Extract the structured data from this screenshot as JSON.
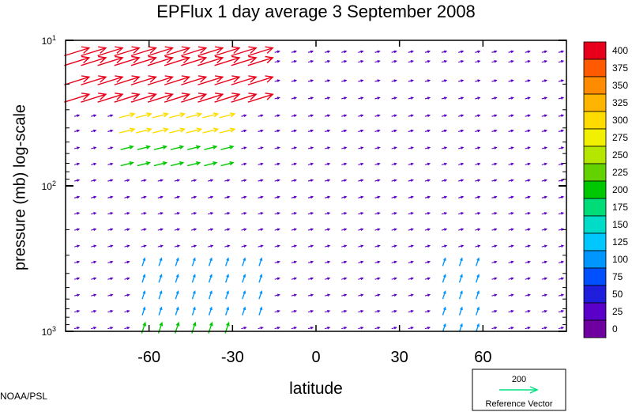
{
  "chart_data": {
    "type": "quiver",
    "title": "EPFlux  1 day average  3 September 2008",
    "xlabel": "latitude",
    "ylabel": "pressure (mb)  log-scale",
    "xlim": [
      -90,
      90
    ],
    "ylim": [
      1000,
      10
    ],
    "y_scale": "log",
    "x_ticks": [
      -60,
      -30,
      0,
      30,
      60
    ],
    "x_tick_labels": [
      "-60",
      "-30",
      "0",
      "30",
      "60"
    ],
    "y_ticks": [
      {
        "value": 10,
        "base": "10",
        "exp": "1"
      },
      {
        "value": 100,
        "base": "10",
        "exp": "2"
      },
      {
        "value": 1000,
        "base": "10",
        "exp": "3"
      }
    ],
    "colorbar": {
      "levels": [
        400,
        375,
        350,
        325,
        300,
        275,
        250,
        225,
        200,
        175,
        150,
        125,
        100,
        75,
        50,
        25,
        0
      ],
      "level_labels": [
        "400",
        "375",
        "350",
        "325",
        "300",
        "275",
        "250",
        "225",
        "200",
        "175",
        "150",
        "125",
        "100",
        "75",
        "50",
        "25",
        "0"
      ],
      "colors": [
        "#e8001a",
        "#ff5a00",
        "#ff8c00",
        "#ffb400",
        "#ffdc00",
        "#f0f000",
        "#b4e600",
        "#64d200",
        "#00c800",
        "#00dc78",
        "#00dcc8",
        "#00c8ff",
        "#0096ff",
        "#0050ff",
        "#1e1edc",
        "#5a00c8",
        "#6e00a0"
      ]
    },
    "reference_vector": {
      "value": "200",
      "label": "Reference Vector",
      "color": "#00e080"
    },
    "vector_field": {
      "lat_start": -86,
      "lat_step": 6,
      "lat_count": 30,
      "levels_mb": [
        12,
        14,
        19,
        25,
        33,
        42,
        55,
        71,
        92,
        120,
        155,
        200,
        260,
        335,
        435,
        565,
        730,
        950
      ],
      "background_magnitude": 25,
      "regions": [
        {
          "lat": [
            -86,
            -20
          ],
          "p": [
            12,
            26
          ],
          "mag": 400,
          "scale": 4.5
        },
        {
          "lat": [
            -70,
            -30
          ],
          "p": [
            26,
            45
          ],
          "mag": 300,
          "scale": 3.2
        },
        {
          "lat": [
            -70,
            -30
          ],
          "p": [
            45,
            80
          ],
          "mag": 200,
          "scale": 2.6
        },
        {
          "lat": [
            -66,
            -20
          ],
          "p": [
            300,
            760
          ],
          "mag": 110,
          "scale": 1.6
        },
        {
          "lat": [
            -64,
            -30
          ],
          "p": [
            760,
            1000
          ],
          "mag": 220,
          "scale": 2.2
        },
        {
          "lat": [
            46,
            60
          ],
          "p": [
            300,
            1000
          ],
          "mag": 110,
          "scale": 1.6
        }
      ]
    }
  },
  "credit": "NOAA/PSL"
}
